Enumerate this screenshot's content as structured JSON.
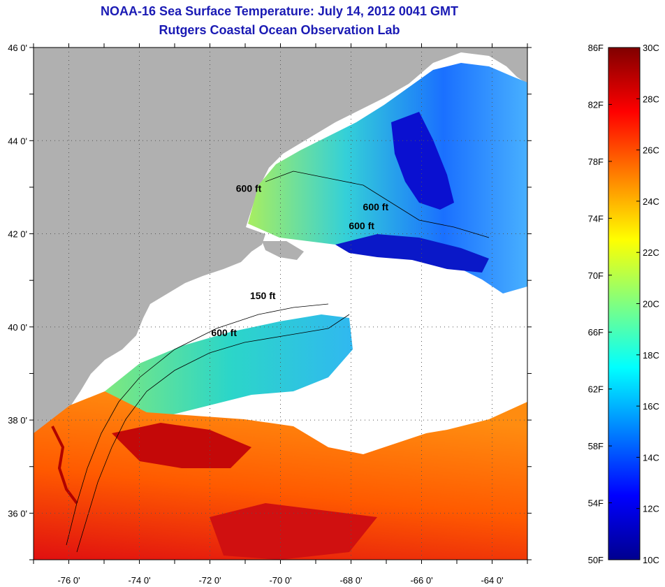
{
  "title": "NOAA-16 Sea Surface Temperature:  July 14, 2012 0041 GMT",
  "subtitle": "Rutgers Coastal Ocean Observation Lab",
  "map": {
    "lat_range": [
      35,
      46
    ],
    "lon_range": [
      -77,
      -63
    ],
    "lat_ticks": [
      {
        "value": 46,
        "label": "46 0'"
      },
      {
        "value": 44,
        "label": "44 0'"
      },
      {
        "value": 42,
        "label": "42 0'"
      },
      {
        "value": 40,
        "label": "40 0'"
      },
      {
        "value": 38,
        "label": "38 0'"
      },
      {
        "value": 36,
        "label": "36 0'"
      }
    ],
    "lon_ticks": [
      {
        "value": -76,
        "label": "-76 0'"
      },
      {
        "value": -74,
        "label": "-74 0'"
      },
      {
        "value": -72,
        "label": "-72 0'"
      },
      {
        "value": -70,
        "label": "-70 0'"
      },
      {
        "value": -68,
        "label": "-68 0'"
      },
      {
        "value": -66,
        "label": "-66 0'"
      },
      {
        "value": -64,
        "label": "-64 0'"
      }
    ],
    "contour_labels": [
      {
        "text": "600 ft",
        "lon": -70.9,
        "lat": 42.9
      },
      {
        "text": "600 ft",
        "lon": -67.3,
        "lat": 42.5
      },
      {
        "text": "600 ft",
        "lon": -67.7,
        "lat": 42.1
      },
      {
        "text": "150 ft",
        "lon": -70.5,
        "lat": 40.6
      },
      {
        "text": "600 ft",
        "lon": -71.6,
        "lat": 39.8
      }
    ],
    "land_color": "#b0b0b0",
    "cloud_color": "#ffffff"
  },
  "colorbar": {
    "fahrenheit_labels": [
      "86F",
      "82F",
      "78F",
      "74F",
      "70F",
      "66F",
      "62F",
      "58F",
      "54F",
      "50F"
    ],
    "celsius_labels": [
      "30C",
      "28C",
      "26C",
      "24C",
      "22C",
      "20C",
      "18C",
      "16C",
      "14C",
      "12C",
      "10C"
    ],
    "range_c": [
      10,
      30
    ],
    "colors": [
      "#00008f",
      "#0000ff",
      "#0080ff",
      "#00ffff",
      "#80ff80",
      "#ffff00",
      "#ff8000",
      "#ff0000",
      "#800000"
    ]
  }
}
